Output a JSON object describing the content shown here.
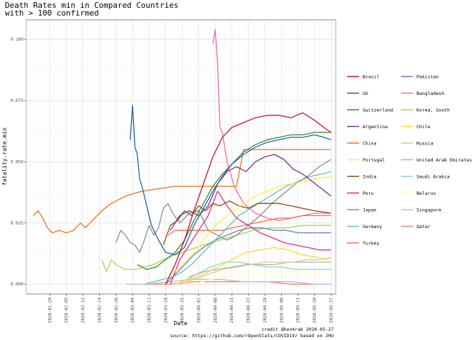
{
  "chart_data": {
    "type": "line",
    "title_line1": "Death Rates min in Compared Countries",
    "title_line2": "with >  100  confirmed",
    "xlabel": "Date",
    "ylabel": "fatality.rate.min",
    "ylim": [
      -0.004,
      0.108
    ],
    "yticks": [
      0.0,
      0.025,
      0.05,
      0.075,
      0.1
    ],
    "ytick_labels": [
      "0.000",
      "0.025",
      "0.050",
      "0.075",
      "0.100"
    ],
    "xlim": [
      "2020-01-19",
      "2020-05-29"
    ],
    "xticks": [
      "2020-01-29",
      "2020-02-05",
      "2020-02-12",
      "2020-02-19",
      "2020-02-26",
      "2020-03-04",
      "2020-03-11",
      "2020-03-18",
      "2020-03-25",
      "2020-04-01",
      "2020-04-08",
      "2020-04-15",
      "2020-04-22",
      "2020-04-29",
      "2020-05-06",
      "2020-05-13",
      "2020-05-20",
      "2020-05-27"
    ],
    "grid": true,
    "legend_position": "right",
    "caption_line1": "credit @ken4rab 2020-05-27",
    "caption_line2": "source: https://github.com/rOpenStats/COVID19/ based on JHU",
    "series": [
      {
        "name": "Brazil",
        "color": "#C8102E",
        "x": [
          "2020-03-18",
          "2020-03-22",
          "2020-03-26",
          "2020-03-30",
          "2020-04-03",
          "2020-04-07",
          "2020-04-11",
          "2020-04-15",
          "2020-04-20",
          "2020-04-25",
          "2020-04-30",
          "2020-05-05",
          "2020-05-10",
          "2020-05-15",
          "2020-05-20",
          "2020-05-24",
          "2020-05-27"
        ],
        "y": [
          0.0,
          0.008,
          0.018,
          0.03,
          0.041,
          0.052,
          0.06,
          0.064,
          0.066,
          0.068,
          0.069,
          0.069,
          0.068,
          0.07,
          0.067,
          0.064,
          0.062
        ]
      },
      {
        "name": "US",
        "color": "#1F5FA8",
        "x": [
          "2020-03-03",
          "2020-03-04",
          "2020-03-05",
          "2020-03-06",
          "2020-03-07",
          "2020-03-08",
          "2020-03-10",
          "2020-03-12",
          "2020-03-15",
          "2020-03-18",
          "2020-03-22",
          "2020-03-26",
          "2020-03-30",
          "2020-04-03",
          "2020-04-07",
          "2020-04-11",
          "2020-04-15",
          "2020-04-20",
          "2020-04-25",
          "2020-04-30",
          "2020-05-05",
          "2020-05-10",
          "2020-05-15",
          "2020-05-20",
          "2020-05-24",
          "2020-05-27"
        ],
        "y": [
          0.059,
          0.073,
          0.056,
          0.053,
          0.043,
          0.04,
          0.032,
          0.024,
          0.018,
          0.013,
          0.012,
          0.015,
          0.024,
          0.031,
          0.038,
          0.044,
          0.049,
          0.053,
          0.056,
          0.058,
          0.059,
          0.06,
          0.06,
          0.061,
          0.06,
          0.059
        ]
      },
      {
        "name": "Switzerland",
        "color": "#2E8B2E",
        "x": [
          "2020-03-06",
          "2020-03-10",
          "2020-03-14",
          "2020-03-18",
          "2020-03-22",
          "2020-03-26",
          "2020-03-30",
          "2020-04-03",
          "2020-04-07",
          "2020-04-11",
          "2020-04-15",
          "2020-04-20",
          "2020-04-25",
          "2020-04-30",
          "2020-05-05",
          "2020-05-10",
          "2020-05-15",
          "2020-05-20",
          "2020-05-27"
        ],
        "y": [
          0.008,
          0.006,
          0.007,
          0.01,
          0.013,
          0.018,
          0.026,
          0.033,
          0.04,
          0.045,
          0.049,
          0.054,
          0.057,
          0.059,
          0.06,
          0.061,
          0.061,
          0.062,
          0.062
        ]
      },
      {
        "name": "Argentina",
        "color": "#7B2D8B",
        "x": [
          "2020-03-20",
          "2020-03-24",
          "2020-03-28",
          "2020-04-01",
          "2020-04-05",
          "2020-04-09",
          "2020-04-13",
          "2020-04-17",
          "2020-04-21",
          "2020-04-25",
          "2020-04-29",
          "2020-05-03",
          "2020-05-07",
          "2020-05-11",
          "2020-05-15",
          "2020-05-19",
          "2020-05-23",
          "2020-05-27"
        ],
        "y": [
          0.022,
          0.028,
          0.03,
          0.028,
          0.032,
          0.041,
          0.046,
          0.048,
          0.046,
          0.05,
          0.052,
          0.053,
          0.051,
          0.047,
          0.045,
          0.042,
          0.039,
          0.036
        ]
      },
      {
        "name": "China",
        "color": "#F07021",
        "x": [
          "2020-01-22",
          "2020-01-24",
          "2020-01-26",
          "2020-01-28",
          "2020-01-30",
          "2020-02-02",
          "2020-02-05",
          "2020-02-08",
          "2020-02-11",
          "2020-02-13",
          "2020-02-16",
          "2020-02-20",
          "2020-02-24",
          "2020-03-01",
          "2020-03-08",
          "2020-03-15",
          "2020-03-22",
          "2020-03-29",
          "2020-04-05",
          "2020-04-12",
          "2020-04-17",
          "2020-04-20",
          "2020-05-27"
        ],
        "y": [
          0.028,
          0.03,
          0.027,
          0.023,
          0.021,
          0.022,
          0.021,
          0.022,
          0.025,
          0.023,
          0.026,
          0.03,
          0.033,
          0.036,
          0.038,
          0.039,
          0.04,
          0.04,
          0.04,
          0.04,
          0.04,
          0.055,
          0.055
        ]
      },
      {
        "name": "Portugal",
        "color": "#FFEF4A",
        "x": [
          "2020-03-19",
          "2020-03-23",
          "2020-03-27",
          "2020-03-31",
          "2020-04-04",
          "2020-04-08",
          "2020-04-12",
          "2020-04-16",
          "2020-04-20",
          "2020-04-25",
          "2020-04-30",
          "2020-05-05",
          "2020-05-10",
          "2020-05-15",
          "2020-05-20",
          "2020-05-27"
        ],
        "y": [
          0.004,
          0.006,
          0.01,
          0.014,
          0.019,
          0.024,
          0.027,
          0.03,
          0.033,
          0.036,
          0.038,
          0.04,
          0.041,
          0.042,
          0.043,
          0.044
        ]
      },
      {
        "name": "India",
        "color": "#8B4513",
        "x": [
          "2020-03-17",
          "2020-03-20",
          "2020-03-23",
          "2020-03-26",
          "2020-03-29",
          "2020-04-01",
          "2020-04-04",
          "2020-04-07",
          "2020-04-10",
          "2020-04-14",
          "2020-04-18",
          "2020-04-22",
          "2020-04-26",
          "2020-04-30",
          "2020-05-05",
          "2020-05-10",
          "2020-05-15",
          "2020-05-20",
          "2020-05-27"
        ],
        "y": [
          0.016,
          0.024,
          0.026,
          0.03,
          0.028,
          0.032,
          0.03,
          0.033,
          0.032,
          0.034,
          0.032,
          0.031,
          0.033,
          0.033,
          0.033,
          0.032,
          0.031,
          0.03,
          0.029
        ]
      },
      {
        "name": "Peru",
        "color": "#E7298A",
        "x": [
          "2020-03-20",
          "2020-03-24",
          "2020-03-28",
          "2020-04-01",
          "2020-04-05",
          "2020-04-09",
          "2020-04-13",
          "2020-04-17",
          "2020-04-22",
          "2020-04-27",
          "2020-05-02",
          "2020-05-07",
          "2020-05-12",
          "2020-05-17",
          "2020-05-22",
          "2020-05-27"
        ],
        "y": [
          0.0,
          0.01,
          0.016,
          0.022,
          0.028,
          0.038,
          0.032,
          0.027,
          0.024,
          0.021,
          0.019,
          0.017,
          0.016,
          0.015,
          0.014,
          0.014
        ]
      },
      {
        "name": "Japan",
        "color": "#8C8C8C",
        "x": [
          "2020-02-26",
          "2020-02-28",
          "2020-03-01",
          "2020-03-03",
          "2020-03-05",
          "2020-03-07",
          "2020-03-09",
          "2020-03-11",
          "2020-03-13",
          "2020-03-15",
          "2020-03-17",
          "2020-03-19",
          "2020-03-21",
          "2020-03-24",
          "2020-03-28",
          "2020-04-01",
          "2020-04-05",
          "2020-04-09",
          "2020-04-13",
          "2020-04-17",
          "2020-04-22",
          "2020-04-27",
          "2020-05-02",
          "2020-05-07",
          "2020-05-12",
          "2020-05-17",
          "2020-05-22",
          "2020-05-27"
        ],
        "y": [
          0.017,
          0.022,
          0.02,
          0.017,
          0.016,
          0.013,
          0.018,
          0.024,
          0.02,
          0.023,
          0.031,
          0.033,
          0.029,
          0.025,
          0.029,
          0.03,
          0.022,
          0.02,
          0.018,
          0.02,
          0.024,
          0.028,
          0.033,
          0.037,
          0.041,
          0.044,
          0.048,
          0.051
        ]
      },
      {
        "name": "Germany",
        "color": "#66C2A5",
        "x": [
          "2020-03-09",
          "2020-03-13",
          "2020-03-17",
          "2020-03-21",
          "2020-03-25",
          "2020-03-29",
          "2020-04-02",
          "2020-04-06",
          "2020-04-10",
          "2020-04-14",
          "2020-04-18",
          "2020-04-23",
          "2020-04-28",
          "2020-05-03",
          "2020-05-08",
          "2020-05-13",
          "2020-05-18",
          "2020-05-23",
          "2020-05-27"
        ],
        "y": [
          0.0,
          0.001,
          0.002,
          0.003,
          0.005,
          0.008,
          0.012,
          0.016,
          0.02,
          0.024,
          0.028,
          0.031,
          0.034,
          0.037,
          0.04,
          0.042,
          0.044,
          0.045,
          0.046
        ]
      },
      {
        "name": "Turkey",
        "color": "#FB6A4A",
        "x": [
          "2020-03-19",
          "2020-03-22",
          "2020-03-26",
          "2020-03-30",
          "2020-04-03",
          "2020-04-07",
          "2020-04-11",
          "2020-04-15",
          "2020-04-20",
          "2020-04-25",
          "2020-04-30",
          "2020-05-05",
          "2020-05-10",
          "2020-05-15",
          "2020-05-20",
          "2020-05-27"
        ],
        "y": [
          0.02,
          0.022,
          0.022,
          0.022,
          0.022,
          0.022,
          0.022,
          0.023,
          0.024,
          0.025,
          0.026,
          0.027,
          0.027,
          0.028,
          0.028,
          0.028
        ]
      },
      {
        "name": "Pakistan",
        "color": "#6B7FB0",
        "x": [
          "2020-03-18",
          "2020-03-22",
          "2020-03-26",
          "2020-03-30",
          "2020-04-03",
          "2020-04-08",
          "2020-04-13",
          "2020-04-18",
          "2020-04-23",
          "2020-04-28",
          "2020-05-03",
          "2020-05-08",
          "2020-05-13",
          "2020-05-18",
          "2020-05-23",
          "2020-05-27"
        ],
        "y": [
          0.0,
          0.004,
          0.008,
          0.012,
          0.015,
          0.018,
          0.02,
          0.022,
          0.023,
          0.023,
          0.022,
          0.022,
          0.021,
          0.021,
          0.021,
          0.021
        ]
      },
      {
        "name": "Bangladesh",
        "color": "#F26BA6",
        "x": [
          "2020-04-07",
          "2020-04-08",
          "2020-04-09",
          "2020-04-10",
          "2020-04-11",
          "2020-04-13",
          "2020-04-16",
          "2020-04-20",
          "2020-04-25",
          "2020-04-30",
          "2020-05-05",
          "2020-05-10",
          "2020-05-15",
          "2020-05-20",
          "2020-05-27"
        ],
        "y": [
          0.098,
          0.104,
          0.09,
          0.064,
          0.062,
          0.05,
          0.04,
          0.033,
          0.029,
          0.027,
          0.026,
          0.027,
          0.028,
          0.029,
          0.029
        ]
      },
      {
        "name": "Korea, South",
        "color": "#A6D854",
        "x": [
          "2020-02-20",
          "2020-02-22",
          "2020-02-24",
          "2020-02-26",
          "2020-03-01",
          "2020-03-05",
          "2020-03-09",
          "2020-03-13",
          "2020-03-17",
          "2020-03-22",
          "2020-03-28",
          "2020-04-03",
          "2020-04-10",
          "2020-04-17",
          "2020-04-24",
          "2020-05-01",
          "2020-05-08",
          "2020-05-15",
          "2020-05-22",
          "2020-05-27"
        ],
        "y": [
          0.01,
          0.005,
          0.01,
          0.008,
          0.006,
          0.006,
          0.007,
          0.008,
          0.01,
          0.012,
          0.014,
          0.016,
          0.018,
          0.02,
          0.022,
          0.023,
          0.023,
          0.024,
          0.024,
          0.024
        ]
      },
      {
        "name": "Chile",
        "color": "#FFD92F",
        "x": [
          "2020-03-22",
          "2020-03-28",
          "2020-04-03",
          "2020-04-09",
          "2020-04-15",
          "2020-04-21",
          "2020-04-27",
          "2020-05-03",
          "2020-05-09",
          "2020-05-15",
          "2020-05-21",
          "2020-05-27"
        ],
        "y": [
          0.0,
          0.002,
          0.004,
          0.007,
          0.01,
          0.013,
          0.014,
          0.015,
          0.014,
          0.012,
          0.011,
          0.01
        ]
      },
      {
        "name": "Russia",
        "color": "#E5C494",
        "x": [
          "2020-03-24",
          "2020-03-30",
          "2020-04-05",
          "2020-04-11",
          "2020-04-17",
          "2020-04-23",
          "2020-04-29",
          "2020-05-05",
          "2020-05-11",
          "2020-05-17",
          "2020-05-23",
          "2020-05-27"
        ],
        "y": [
          0.0,
          0.002,
          0.004,
          0.006,
          0.007,
          0.008,
          0.009,
          0.009,
          0.009,
          0.01,
          0.01,
          0.011
        ]
      },
      {
        "name": "United Arab Emirates",
        "color": "#B3B3B3",
        "x": [
          "2020-03-28",
          "2020-04-03",
          "2020-04-09",
          "2020-04-15",
          "2020-04-21",
          "2020-04-27",
          "2020-05-03",
          "2020-05-09",
          "2020-05-15",
          "2020-05-21",
          "2020-05-27"
        ],
        "y": [
          0.003,
          0.005,
          0.006,
          0.007,
          0.008,
          0.008,
          0.008,
          0.009,
          0.009,
          0.009,
          0.009
        ]
      },
      {
        "name": "Saudi Arabia",
        "color": "#8DD3C7",
        "x": [
          "2020-03-25",
          "2020-03-31",
          "2020-04-06",
          "2020-04-12",
          "2020-04-18",
          "2020-04-24",
          "2020-04-30",
          "2020-05-06",
          "2020-05-12",
          "2020-05-18",
          "2020-05-24",
          "2020-05-27"
        ],
        "y": [
          0.001,
          0.004,
          0.007,
          0.009,
          0.009,
          0.008,
          0.007,
          0.007,
          0.006,
          0.006,
          0.006,
          0.006
        ]
      },
      {
        "name": "Belarus",
        "color": "#FFFFB3",
        "x": [
          "2020-03-30",
          "2020-04-06",
          "2020-04-13",
          "2020-04-20",
          "2020-04-27",
          "2020-05-04",
          "2020-05-11",
          "2020-05-18",
          "2020-05-27"
        ],
        "y": [
          0.0,
          0.002,
          0.003,
          0.004,
          0.005,
          0.005,
          0.005,
          0.005,
          0.005
        ]
      },
      {
        "name": "Singapore",
        "color": "#BEBADA",
        "x": [
          "2020-03-01",
          "2020-03-10",
          "2020-03-20",
          "2020-03-30",
          "2020-04-10",
          "2020-04-20",
          "2020-04-30",
          "2020-05-10",
          "2020-05-20",
          "2020-05-27"
        ],
        "y": [
          0.0,
          0.0,
          0.001,
          0.002,
          0.002,
          0.001,
          0.001,
          0.001,
          0.0,
          0.0
        ]
      },
      {
        "name": "Qatar",
        "color": "#FB8072",
        "x": [
          "2020-03-10",
          "2020-03-20",
          "2020-03-30",
          "2020-04-10",
          "2020-04-20",
          "2020-04-30",
          "2020-05-10",
          "2020-05-20",
          "2020-05-27"
        ],
        "y": [
          0.0,
          0.0,
          0.001,
          0.001,
          0.001,
          0.001,
          0.0,
          0.0,
          0.0
        ]
      }
    ]
  }
}
